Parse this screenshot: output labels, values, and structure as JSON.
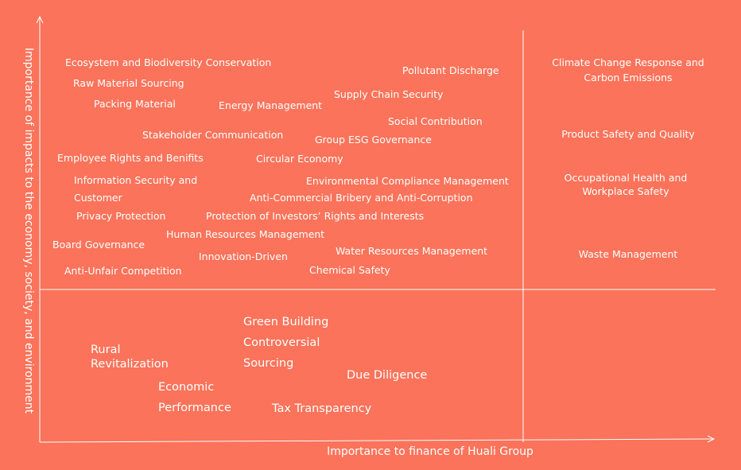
{
  "axes": {
    "x_label": "Importance to finance of Huali Group",
    "y_label": "Importance of impacts to the economy, society, and environment"
  },
  "quadrants": {
    "top_left": {
      "ecosystem": "Ecosystem and Biodiversity Conservation",
      "raw_material": "Raw Material Sourcing",
      "packing_material": "Packing Material",
      "energy_management": "Energy Management",
      "pollutant_discharge": "Pollutant Discharge",
      "supply_chain_security": "Supply Chain Security",
      "social_contribution": "Social Contribution",
      "stakeholder_communication": "Stakeholder Communication",
      "group_esg_governance": "Group ESG Governance",
      "employee_rights": "Employee Rights and Benifits",
      "circular_economy": "Circular Economy",
      "information_security_1": "Information Security and",
      "information_security_2": "Customer",
      "privacy_protection": "Privacy Protection",
      "environmental_compliance": "Environmental Compliance Management",
      "anti_commercial_bribery": "Anti-Commercial Bribery and Anti-Corruption",
      "investors_rights": "Protection of Investors’ Rights and Interests",
      "human_resources": "Human Resources Management",
      "board_governance": "Board Governance",
      "innovation_driven": "Innovation-Driven",
      "water_resources": "Water Resources Management",
      "anti_unfair_competition": "Anti-Unfair Competition",
      "chemical_safety": "Chemical Safety"
    },
    "top_right": {
      "climate_change_1": "Climate Change Response and",
      "climate_change_2": "Carbon Emissions",
      "product_safety": "Product Safety and Quality",
      "occupational_health_1": "Occupational Health and",
      "occupational_health_2": "Workplace Safety",
      "waste_management": "Waste Management"
    },
    "bottom_left": {
      "rural_1": "Rural",
      "rural_2": "Revitalization",
      "economic_1": "Economic",
      "economic_2": "Performance",
      "green_building": "Green Building",
      "controversial_1": "Controversial",
      "controversial_2": "Sourcing",
      "due_diligence": "Due Diligence",
      "tax_transparency": "Tax Transparency"
    }
  }
}
